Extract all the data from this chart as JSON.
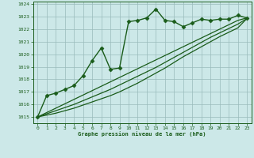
{
  "background_color": "#cce8e8",
  "plot_bg_color": "#cce8e8",
  "grid_color": "#99bbbb",
  "line_color": "#1a5c1a",
  "marker_color": "#1a5c1a",
  "xlabel": "Graphe pression niveau de la mer (hPa)",
  "xlim": [
    -0.5,
    23.5
  ],
  "ylim": [
    1014.5,
    1024.2
  ],
  "yticks": [
    1015,
    1016,
    1017,
    1018,
    1019,
    1020,
    1021,
    1022,
    1023,
    1024
  ],
  "xticks": [
    0,
    1,
    2,
    3,
    4,
    5,
    6,
    7,
    8,
    9,
    10,
    11,
    12,
    13,
    14,
    15,
    16,
    17,
    18,
    19,
    20,
    21,
    22,
    23
  ],
  "series": [
    {
      "x": [
        0,
        1,
        2,
        3,
        4,
        5,
        6,
        7,
        8,
        9,
        10,
        11,
        12,
        13,
        14,
        15,
        16,
        17,
        18,
        19,
        20,
        21,
        22,
        23
      ],
      "y": [
        1015.0,
        1016.7,
        1016.9,
        1017.2,
        1017.5,
        1018.3,
        1019.5,
        1020.5,
        1018.8,
        1018.9,
        1022.6,
        1022.7,
        1022.9,
        1023.6,
        1022.7,
        1022.6,
        1022.2,
        1022.5,
        1022.8,
        1022.7,
        1022.8,
        1022.8,
        1023.1,
        1022.9
      ],
      "marker": "D",
      "markersize": 2.5,
      "linewidth": 1.0,
      "with_marker": true
    },
    {
      "x": [
        0,
        1,
        2,
        3,
        4,
        5,
        6,
        7,
        8,
        9,
        10,
        11,
        12,
        13,
        14,
        15,
        16,
        17,
        18,
        19,
        20,
        21,
        22,
        23
      ],
      "y": [
        1015.0,
        1015.35,
        1015.7,
        1016.05,
        1016.4,
        1016.75,
        1017.1,
        1017.45,
        1017.8,
        1018.15,
        1018.5,
        1018.85,
        1019.2,
        1019.55,
        1019.9,
        1020.25,
        1020.6,
        1020.95,
        1021.3,
        1021.65,
        1022.0,
        1022.35,
        1022.7,
        1022.9
      ],
      "marker": null,
      "markersize": 0,
      "linewidth": 0.9,
      "with_marker": false
    },
    {
      "x": [
        0,
        1,
        2,
        3,
        4,
        5,
        6,
        7,
        8,
        9,
        10,
        11,
        12,
        13,
        14,
        15,
        16,
        17,
        18,
        19,
        20,
        21,
        22,
        23
      ],
      "y": [
        1015.0,
        1015.25,
        1015.5,
        1015.75,
        1016.0,
        1016.3,
        1016.6,
        1016.9,
        1017.2,
        1017.55,
        1017.9,
        1018.25,
        1018.6,
        1018.95,
        1019.35,
        1019.75,
        1020.15,
        1020.55,
        1020.95,
        1021.35,
        1021.7,
        1022.05,
        1022.4,
        1022.85
      ],
      "marker": null,
      "markersize": 0,
      "linewidth": 0.9,
      "with_marker": false
    },
    {
      "x": [
        0,
        1,
        2,
        3,
        4,
        5,
        6,
        7,
        8,
        9,
        10,
        11,
        12,
        13,
        14,
        15,
        16,
        17,
        18,
        19,
        20,
        21,
        22,
        23
      ],
      "y": [
        1015.0,
        1015.15,
        1015.3,
        1015.5,
        1015.7,
        1015.95,
        1016.2,
        1016.45,
        1016.7,
        1017.0,
        1017.35,
        1017.7,
        1018.1,
        1018.5,
        1018.9,
        1019.35,
        1019.8,
        1020.2,
        1020.6,
        1021.0,
        1021.4,
        1021.75,
        1022.1,
        1022.85
      ],
      "marker": null,
      "markersize": 0,
      "linewidth": 0.9,
      "with_marker": false
    }
  ]
}
